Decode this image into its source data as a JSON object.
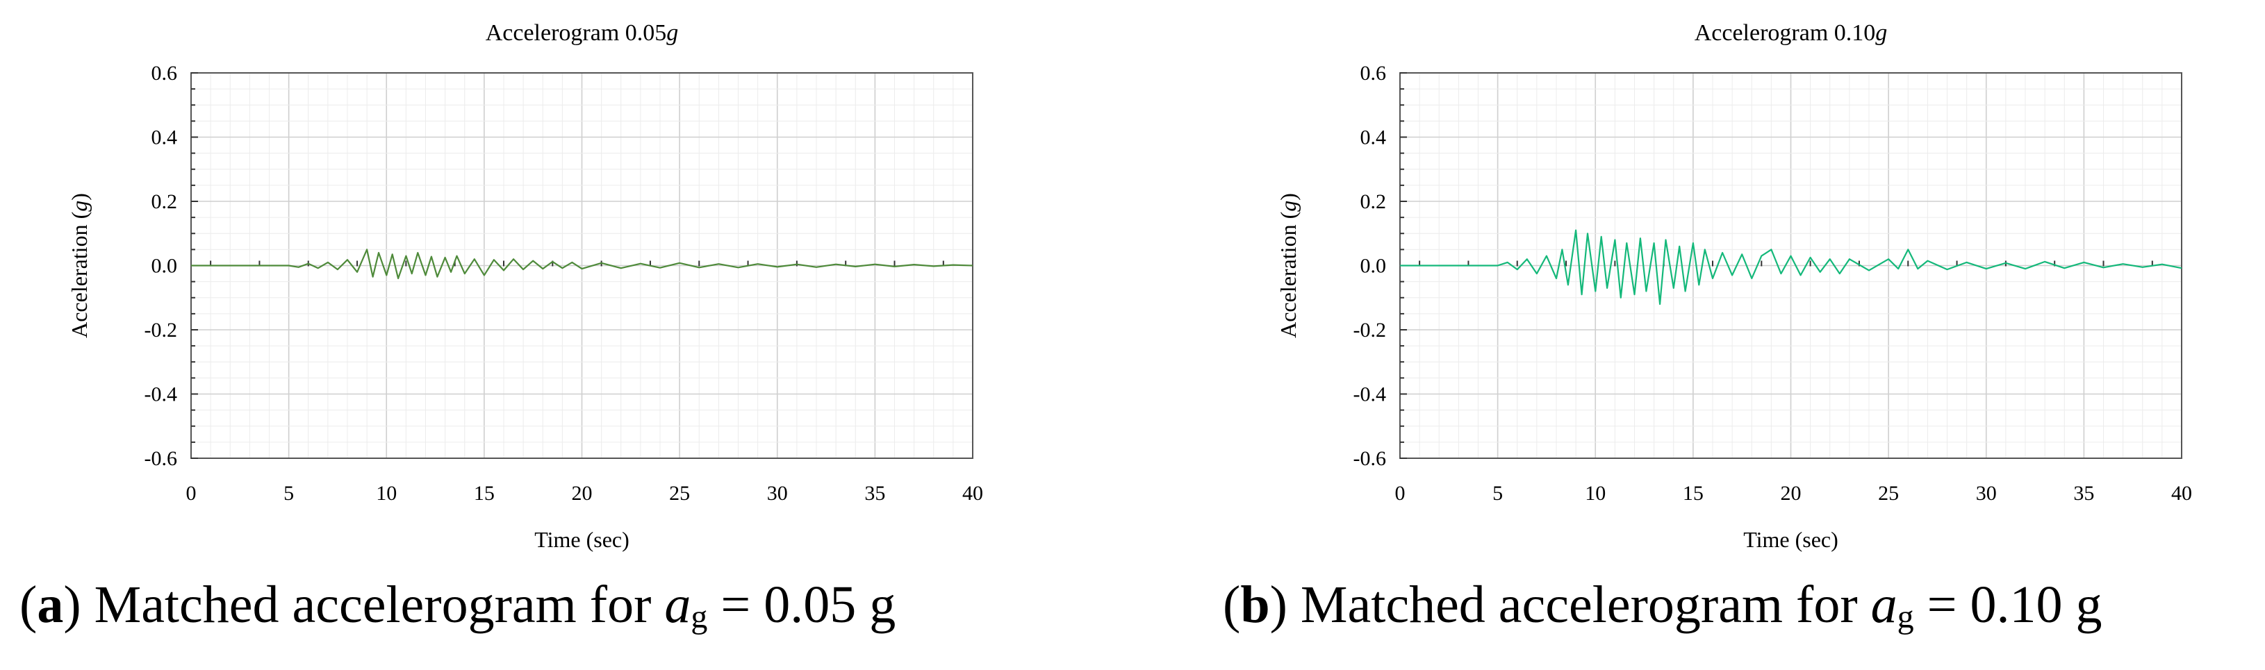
{
  "chart_data": [
    {
      "type": "line",
      "title": "Accelerogram 0.05",
      "title_italic_suffix": "g",
      "xlabel": "Time (sec)",
      "ylabel": "Acceleration (",
      "ylabel_italic_unit": "g",
      "ylabel_suffix": ")",
      "xlim": [
        0,
        40
      ],
      "ylim": [
        -0.6,
        0.6
      ],
      "x_ticks": [
        "0",
        "5",
        "10",
        "15",
        "20",
        "25",
        "30",
        "35",
        "40"
      ],
      "y_ticks": [
        "0.6",
        "0.4",
        "0.2",
        "0.0",
        "-0.2",
        "-0.4",
        "-0.6"
      ],
      "grid": true,
      "series": [
        {
          "name": "Matched accelerogram 0.05g",
          "color": "#4e8a3a",
          "x": [
            0,
            1,
            2,
            3,
            4,
            5,
            5.5,
            6,
            6.5,
            7,
            7.5,
            8,
            8.5,
            9,
            9.3,
            9.6,
            10,
            10.3,
            10.6,
            11,
            11.3,
            11.6,
            12,
            12.3,
            12.6,
            13,
            13.3,
            13.6,
            14,
            14.5,
            15,
            15.5,
            16,
            16.5,
            17,
            17.5,
            18,
            18.5,
            19,
            19.5,
            20,
            21,
            22,
            23,
            24,
            25,
            26,
            27,
            28,
            29,
            30,
            31,
            32,
            33,
            34,
            35,
            36,
            37,
            38,
            39,
            40
          ],
          "y": [
            0,
            0,
            0,
            0,
            0,
            0,
            -0.005,
            0.006,
            -0.008,
            0.01,
            -0.012,
            0.018,
            -0.02,
            0.05,
            -0.035,
            0.04,
            -0.03,
            0.035,
            -0.04,
            0.03,
            -0.025,
            0.04,
            -0.03,
            0.028,
            -0.035,
            0.025,
            -0.02,
            0.03,
            -0.025,
            0.02,
            -0.03,
            0.018,
            -0.015,
            0.02,
            -0.012,
            0.015,
            -0.01,
            0.012,
            -0.008,
            0.01,
            -0.01,
            0.008,
            -0.008,
            0.006,
            -0.007,
            0.008,
            -0.006,
            0.005,
            -0.006,
            0.005,
            -0.004,
            0.004,
            -0.005,
            0.004,
            -0.003,
            0.004,
            -0.003,
            0.003,
            -0.002,
            0.002,
            0
          ]
        }
      ]
    },
    {
      "type": "line",
      "title": "Accelerogram 0.10",
      "title_italic_suffix": "g",
      "xlabel": "Time (sec)",
      "ylabel": "Acceleration (",
      "ylabel_italic_unit": "g",
      "ylabel_suffix": ")",
      "xlim": [
        0,
        40
      ],
      "ylim": [
        -0.6,
        0.6
      ],
      "x_ticks": [
        "0",
        "5",
        "10",
        "15",
        "20",
        "25",
        "30",
        "35",
        "40"
      ],
      "y_ticks": [
        "0.6",
        "0.4",
        "0.2",
        "0.0",
        "-0.2",
        "-0.4",
        "-0.6"
      ],
      "grid": true,
      "series": [
        {
          "name": "Matched accelerogram 0.10g",
          "color": "#14b87a",
          "x": [
            0,
            1,
            2,
            3,
            4,
            5,
            5.5,
            6,
            6.5,
            7,
            7.5,
            8,
            8.3,
            8.6,
            9,
            9.3,
            9.6,
            10,
            10.3,
            10.6,
            11,
            11.3,
            11.6,
            12,
            12.3,
            12.6,
            13,
            13.3,
            13.6,
            14,
            14.3,
            14.6,
            15,
            15.3,
            15.6,
            16,
            16.5,
            17,
            17.5,
            18,
            18.5,
            19,
            19.5,
            20,
            20.5,
            21,
            21.5,
            22,
            22.5,
            23,
            24,
            25,
            25.5,
            26,
            26.5,
            27,
            28,
            29,
            30,
            31,
            32,
            33,
            34,
            35,
            36,
            37,
            38,
            39,
            40
          ],
          "y": [
            0,
            0,
            0,
            0,
            0,
            0,
            0.01,
            -0.012,
            0.02,
            -0.025,
            0.03,
            -0.04,
            0.05,
            -0.06,
            0.11,
            -0.09,
            0.1,
            -0.08,
            0.09,
            -0.07,
            0.08,
            -0.1,
            0.07,
            -0.09,
            0.085,
            -0.08,
            0.07,
            -0.12,
            0.08,
            -0.07,
            0.06,
            -0.08,
            0.07,
            -0.06,
            0.05,
            -0.04,
            0.04,
            -0.03,
            0.035,
            -0.04,
            0.03,
            0.05,
            -0.025,
            0.03,
            -0.03,
            0.025,
            -0.02,
            0.02,
            -0.025,
            0.02,
            -0.015,
            0.02,
            -0.01,
            0.05,
            -0.01,
            0.015,
            -0.012,
            0.01,
            -0.01,
            0.008,
            -0.01,
            0.012,
            -0.008,
            0.01,
            -0.006,
            0.005,
            -0.005,
            0.004,
            -0.008
          ]
        }
      ]
    }
  ],
  "captions": [
    {
      "label": "a",
      "text": "Matched accelerogram for ",
      "var": "a",
      "sub": "g",
      "rest": " = 0.05 g"
    },
    {
      "label": "b",
      "text": "Matched accelerogram for ",
      "var": "a",
      "sub": "g",
      "rest": " = 0.10 g"
    }
  ]
}
